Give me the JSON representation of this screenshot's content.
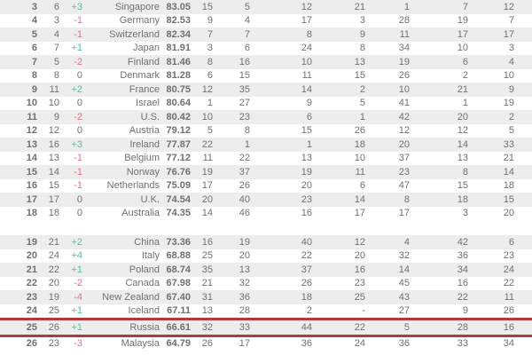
{
  "chart_data": {
    "type": "table",
    "columns": [
      "rank",
      "previous_rank",
      "change",
      "country",
      "score",
      "metric_1",
      "metric_2",
      "metric_3",
      "metric_4",
      "metric_5",
      "metric_6",
      "metric_7"
    ],
    "highlighted_country": "Russia",
    "styles": {
      "text_color": "#707070",
      "rank_score_color": "#1f1f1f",
      "alt_row_background": "#ededed",
      "positive_change_color": "#4fc49a",
      "negative_change_color": "#e0757d",
      "highlight_border_color": "#b23a3e"
    },
    "sections": [
      {
        "rows": [
          {
            "rank": "3",
            "previous_rank": "6",
            "change": "+3",
            "country": "Singapore",
            "score": "83.05",
            "values": [
              "15",
              "5",
              "12",
              "21",
              "1",
              "7",
              "12"
            ],
            "highlighted": false
          },
          {
            "rank": "4",
            "previous_rank": "3",
            "change": "-1",
            "country": "Germany",
            "score": "82.53",
            "values": [
              "9",
              "4",
              "17",
              "3",
              "28",
              "19",
              "7"
            ],
            "highlighted": false
          },
          {
            "rank": "5",
            "previous_rank": "4",
            "change": "-1",
            "country": "Switzerland",
            "score": "82.34",
            "values": [
              "7",
              "7",
              "8",
              "9",
              "11",
              "17",
              "17"
            ],
            "highlighted": false
          },
          {
            "rank": "6",
            "previous_rank": "7",
            "change": "+1",
            "country": "Japan",
            "score": "81.91",
            "values": [
              "3",
              "6",
              "24",
              "8",
              "34",
              "10",
              "3"
            ],
            "highlighted": false
          },
          {
            "rank": "7",
            "previous_rank": "5",
            "change": "-2",
            "country": "Finland",
            "score": "81.46",
            "values": [
              "8",
              "16",
              "10",
              "13",
              "19",
              "6",
              "4"
            ],
            "highlighted": false
          },
          {
            "rank": "8",
            "previous_rank": "8",
            "change": "0",
            "country": "Denmark",
            "score": "81.28",
            "values": [
              "6",
              "15",
              "11",
              "15",
              "26",
              "2",
              "10"
            ],
            "highlighted": false
          },
          {
            "rank": "9",
            "previous_rank": "11",
            "change": "+2",
            "country": "France",
            "score": "80.75",
            "values": [
              "12",
              "35",
              "14",
              "2",
              "10",
              "21",
              "9"
            ],
            "highlighted": false
          },
          {
            "rank": "10",
            "previous_rank": "10",
            "change": "0",
            "country": "Israel",
            "score": "80.64",
            "values": [
              "1",
              "27",
              "9",
              "5",
              "41",
              "1",
              "19"
            ],
            "highlighted": false
          },
          {
            "rank": "11",
            "previous_rank": "9",
            "change": "-2",
            "country": "U.S.",
            "score": "80.42",
            "values": [
              "10",
              "23",
              "6",
              "1",
              "42",
              "20",
              "2"
            ],
            "highlighted": false
          },
          {
            "rank": "12",
            "previous_rank": "12",
            "change": "0",
            "country": "Austria",
            "score": "79.12",
            "values": [
              "5",
              "8",
              "15",
              "26",
              "12",
              "12",
              "5"
            ],
            "highlighted": false
          },
          {
            "rank": "13",
            "previous_rank": "16",
            "change": "+3",
            "country": "Ireland",
            "score": "77.87",
            "values": [
              "22",
              "1",
              "1",
              "18",
              "20",
              "14",
              "33"
            ],
            "highlighted": false
          },
          {
            "rank": "14",
            "previous_rank": "13",
            "change": "-1",
            "country": "Belgium",
            "score": "77.12",
            "values": [
              "11",
              "22",
              "13",
              "10",
              "37",
              "13",
              "21"
            ],
            "highlighted": false
          },
          {
            "rank": "15",
            "previous_rank": "14",
            "change": "-1",
            "country": "Norway",
            "score": "76.76",
            "values": [
              "19",
              "37",
              "19",
              "11",
              "23",
              "8",
              "14"
            ],
            "highlighted": false
          },
          {
            "rank": "16",
            "previous_rank": "15",
            "change": "-1",
            "country": "Netherlands",
            "score": "75.09",
            "values": [
              "17",
              "26",
              "20",
              "6",
              "47",
              "15",
              "18"
            ],
            "highlighted": false
          },
          {
            "rank": "17",
            "previous_rank": "17",
            "change": "0",
            "country": "U.K.",
            "score": "74.54",
            "values": [
              "20",
              "40",
              "23",
              "14",
              "8",
              "18",
              "15"
            ],
            "highlighted": false
          },
          {
            "rank": "18",
            "previous_rank": "18",
            "change": "0",
            "country": "Australia",
            "score": "74.35",
            "values": [
              "14",
              "46",
              "16",
              "17",
              "17",
              "3",
              "20"
            ],
            "highlighted": false
          }
        ]
      },
      {
        "rows": [
          {
            "rank": "19",
            "previous_rank": "21",
            "change": "+2",
            "country": "China",
            "score": "73.36",
            "values": [
              "16",
              "19",
              "40",
              "12",
              "4",
              "42",
              "6"
            ],
            "highlighted": false
          },
          {
            "rank": "20",
            "previous_rank": "24",
            "change": "+4",
            "country": "Italy",
            "score": "68.88",
            "values": [
              "25",
              "20",
              "22",
              "20",
              "32",
              "36",
              "23"
            ],
            "highlighted": false
          },
          {
            "rank": "21",
            "previous_rank": "22",
            "change": "+1",
            "country": "Poland",
            "score": "68.74",
            "values": [
              "35",
              "13",
              "37",
              "16",
              "14",
              "34",
              "24"
            ],
            "highlighted": false
          },
          {
            "rank": "22",
            "previous_rank": "20",
            "change": "-2",
            "country": "Canada",
            "score": "67.98",
            "values": [
              "21",
              "32",
              "26",
              "23",
              "45",
              "16",
              "22"
            ],
            "highlighted": false
          },
          {
            "rank": "23",
            "previous_rank": "19",
            "change": "-4",
            "country": "New Zealand",
            "score": "67.40",
            "values": [
              "31",
              "36",
              "18",
              "25",
              "43",
              "22",
              "11"
            ],
            "highlighted": false
          },
          {
            "rank": "24",
            "previous_rank": "25",
            "change": "+1",
            "country": "Iceland",
            "score": "67.11",
            "values": [
              "13",
              "28",
              "2",
              "-",
              "27",
              "9",
              "26"
            ],
            "highlighted": false
          },
          {
            "rank": "25",
            "previous_rank": "26",
            "change": "+1",
            "country": "Russia",
            "score": "66.61",
            "values": [
              "32",
              "33",
              "44",
              "22",
              "5",
              "28",
              "16"
            ],
            "highlighted": true
          },
          {
            "rank": "26",
            "previous_rank": "23",
            "change": "-3",
            "country": "Malaysia",
            "score": "64.79",
            "values": [
              "26",
              "17",
              "36",
              "24",
              "36",
              "33",
              "34"
            ],
            "highlighted": false
          }
        ]
      }
    ]
  }
}
